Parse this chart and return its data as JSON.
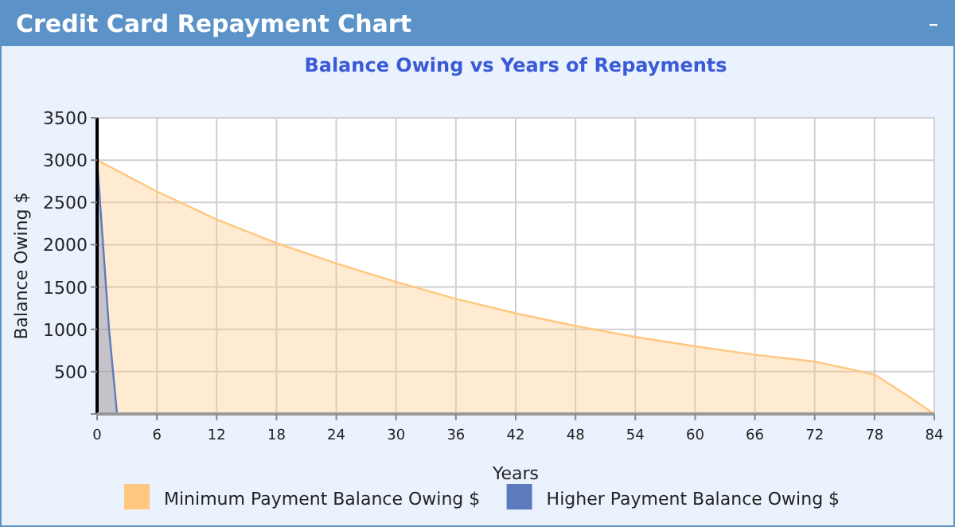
{
  "chart_data": {
    "type": "area",
    "title": "Credit Card Repayment Chart",
    "subtitle": "Balance Owing vs Years of Repayments",
    "xlabel": "Years",
    "ylabel": "Balance Owing $",
    "series": [
      {
        "name": "Minimum Payment Balance Owing $",
        "color": "#ffc77f",
        "x": [
          0,
          6,
          12,
          18,
          24,
          30,
          36,
          42,
          48,
          54,
          60,
          66,
          72,
          75,
          78,
          81,
          84
        ],
        "values": [
          3000,
          2630,
          2300,
          2020,
          1780,
          1560,
          1360,
          1190,
          1040,
          910,
          800,
          700,
          620,
          545,
          465,
          240,
          0
        ]
      },
      {
        "name": "Higher Payment Balance Owing $",
        "color": "#5b7bbd",
        "x": [
          0,
          1.2,
          2
        ],
        "values": [
          3000,
          1000,
          0
        ]
      }
    ],
    "xlim": [
      0,
      84
    ],
    "xticks": [
      0,
      6,
      12,
      18,
      24,
      30,
      36,
      42,
      48,
      54,
      60,
      66,
      72,
      78,
      84
    ],
    "ylim": [
      0,
      3500
    ],
    "yticks": [
      {
        "value": 0,
        "label": null
      },
      500,
      1000,
      1500,
      2000,
      2500,
      3000,
      3500
    ],
    "grid": true,
    "legend": "bottom"
  }
}
